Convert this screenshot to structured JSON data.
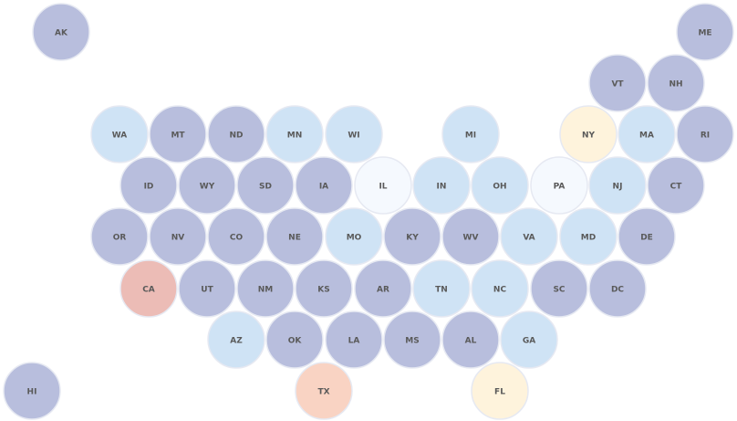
{
  "states": [
    {
      "label": "AK",
      "color": "#b8bedd"
    },
    {
      "label": "ME",
      "color": "#b8bedd"
    },
    {
      "label": "VT",
      "color": "#b8bedd"
    },
    {
      "label": "NH",
      "color": "#b8bedd"
    },
    {
      "label": "WA",
      "color": "#cfe3f5"
    },
    {
      "label": "MT",
      "color": "#b8bedd"
    },
    {
      "label": "ND",
      "color": "#b8bedd"
    },
    {
      "label": "MN",
      "color": "#cfe3f5"
    },
    {
      "label": "WI",
      "color": "#cfe3f5"
    },
    {
      "label": "MI",
      "color": "#cfe3f5"
    },
    {
      "label": "NY",
      "color": "#fef3dc"
    },
    {
      "label": "MA",
      "color": "#cfe3f5"
    },
    {
      "label": "RI",
      "color": "#b8bedd"
    },
    {
      "label": "ID",
      "color": "#b8bedd"
    },
    {
      "label": "WY",
      "color": "#b8bedd"
    },
    {
      "label": "SD",
      "color": "#b8bedd"
    },
    {
      "label": "IA",
      "color": "#b8bedd"
    },
    {
      "label": "IL",
      "color": "#f5f9fe"
    },
    {
      "label": "IN",
      "color": "#cfe3f5"
    },
    {
      "label": "OH",
      "color": "#cfe3f5"
    },
    {
      "label": "PA",
      "color": "#f5f9fe"
    },
    {
      "label": "NJ",
      "color": "#cfe3f5"
    },
    {
      "label": "CT",
      "color": "#b8bedd"
    },
    {
      "label": "OR",
      "color": "#b8bedd"
    },
    {
      "label": "NV",
      "color": "#b8bedd"
    },
    {
      "label": "CO",
      "color": "#b8bedd"
    },
    {
      "label": "NE",
      "color": "#b8bedd"
    },
    {
      "label": "MO",
      "color": "#cfe3f5"
    },
    {
      "label": "KY",
      "color": "#b8bedd"
    },
    {
      "label": "WV",
      "color": "#b8bedd"
    },
    {
      "label": "VA",
      "color": "#cfe3f5"
    },
    {
      "label": "MD",
      "color": "#cfe3f5"
    },
    {
      "label": "DE",
      "color": "#b8bedd"
    },
    {
      "label": "CA",
      "color": "#ecbcb6"
    },
    {
      "label": "UT",
      "color": "#b8bedd"
    },
    {
      "label": "NM",
      "color": "#b8bedd"
    },
    {
      "label": "KS",
      "color": "#b8bedd"
    },
    {
      "label": "AR",
      "color": "#b8bedd"
    },
    {
      "label": "TN",
      "color": "#cfe3f5"
    },
    {
      "label": "NC",
      "color": "#cfe3f5"
    },
    {
      "label": "SC",
      "color": "#b8bedd"
    },
    {
      "label": "DC",
      "color": "#b8bedd"
    },
    {
      "label": "AZ",
      "color": "#cfe3f5"
    },
    {
      "label": "OK",
      "color": "#b8bedd"
    },
    {
      "label": "LA",
      "color": "#b8bedd"
    },
    {
      "label": "MS",
      "color": "#b8bedd"
    },
    {
      "label": "AL",
      "color": "#b8bedd"
    },
    {
      "label": "GA",
      "color": "#cfe3f5"
    },
    {
      "label": "HI",
      "color": "#b8bedd"
    },
    {
      "label": "TX",
      "color": "#f9d3c3"
    },
    {
      "label": "FL",
      "color": "#fef3dc"
    }
  ]
}
